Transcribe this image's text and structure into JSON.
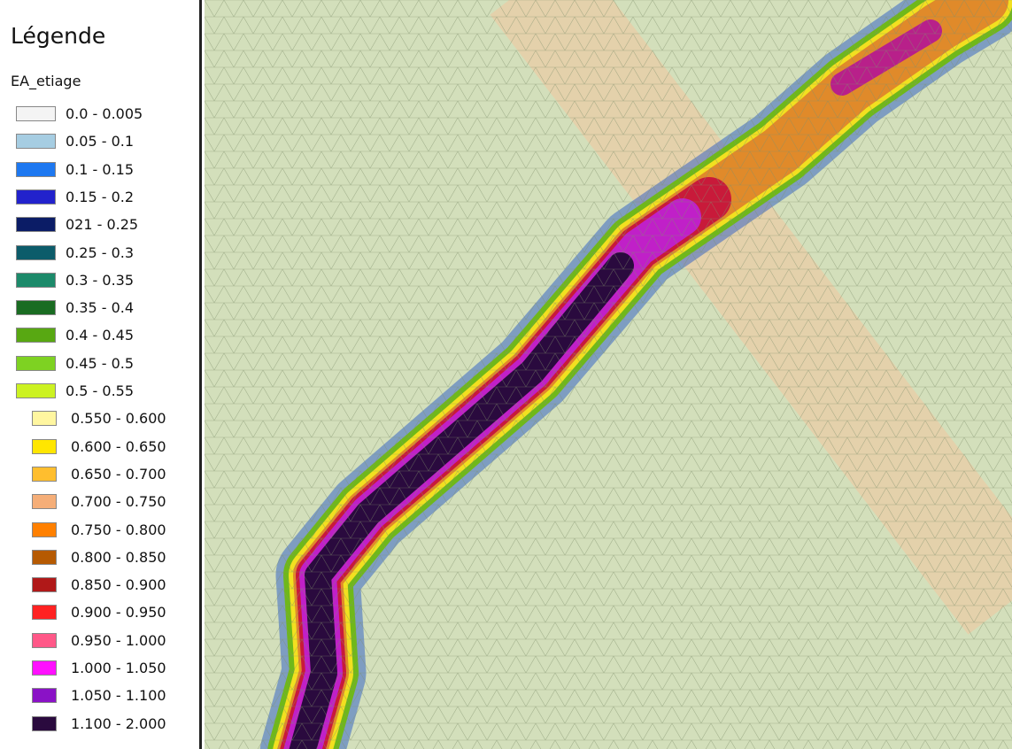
{
  "legend": {
    "title": "Légende",
    "layer": "EA_etiage",
    "items": [
      {
        "label": "0.0 - 0.005",
        "color": "#f4f4f4"
      },
      {
        "label": "0.05 - 0.1",
        "color": "#a6cde2"
      },
      {
        "label": "0.1 - 0.15",
        "color": "#1e78f0"
      },
      {
        "label": "0.15 - 0.2",
        "color": "#2222cc"
      },
      {
        "label": "021 - 0.25",
        "color": "#0b1c66"
      },
      {
        "label": "0.25 - 0.3",
        "color": "#0c5c6a"
      },
      {
        "label": "0.3 - 0.35",
        "color": "#1c8a6a"
      },
      {
        "label": "0.35 - 0.4",
        "color": "#1a6c22"
      },
      {
        "label": "0.4 - 0.45",
        "color": "#58a812"
      },
      {
        "label": "0.45 - 0.5",
        "color": "#7ed222"
      },
      {
        "label": "0.5 - 0.55",
        "color": "#ccf222"
      },
      {
        "label": "0.550 - 0.600",
        "color": "#fff6a0"
      },
      {
        "label": "0.600 - 0.650",
        "color": "#ffe600"
      },
      {
        "label": "0.650 - 0.700",
        "color": "#ffbe2e"
      },
      {
        "label": "0.700 - 0.750",
        "color": "#f5ae78"
      },
      {
        "label": "0.750 - 0.800",
        "color": "#ff8000"
      },
      {
        "label": "0.800 - 0.850",
        "color": "#b65a02"
      },
      {
        "label": "0.850 - 0.900",
        "color": "#b01818"
      },
      {
        "label": "0.900 - 0.950",
        "color": "#ff2222"
      },
      {
        "label": "0.950 - 1.000",
        "color": "#ff5888"
      },
      {
        "label": "1.000 - 1.050",
        "color": "#ff10ff"
      },
      {
        "label": "1.050 - 1.100",
        "color": "#8a12c6"
      },
      {
        "label": "1.100 - 2.000",
        "color": "#2a0a3e"
      }
    ]
  }
}
